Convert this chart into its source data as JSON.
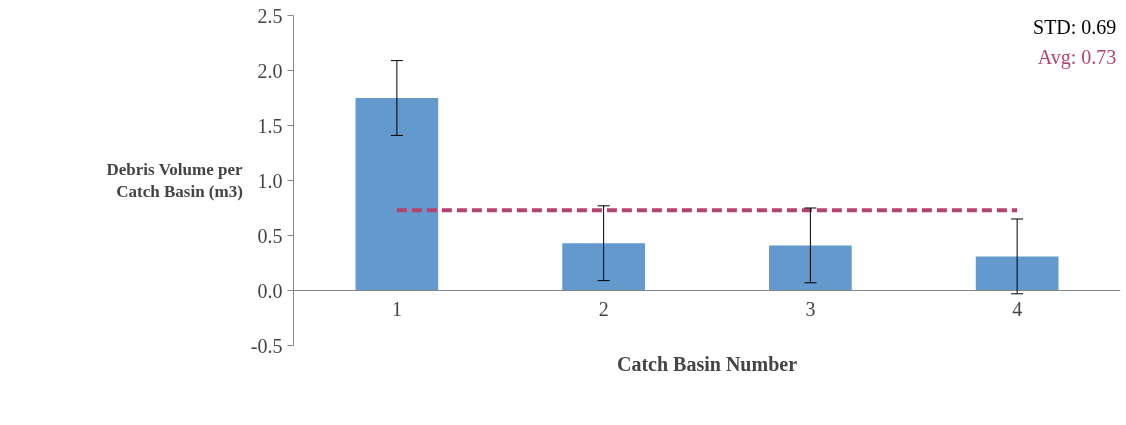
{
  "chart_data": {
    "type": "bar",
    "xlabel": "Catch Basin Number",
    "ylabel": "Debris Volume per\nCatch Basin (m3)",
    "categories": [
      "1",
      "2",
      "3",
      "4"
    ],
    "series": [
      {
        "color": "#6399cc",
        "values": [
          1.75,
          0.43,
          0.41,
          0.31
        ],
        "errors": [
          0.34,
          0.34,
          0.34,
          0.34
        ]
      }
    ],
    "ylim": [
      -0.5,
      2.5
    ],
    "yticks": [
      {
        "value": -0.5,
        "label": "-0.5"
      },
      {
        "value": 0,
        "label": "0.0"
      },
      {
        "value": 0.5,
        "label": "0.5"
      },
      {
        "value": 1,
        "label": "1.0"
      },
      {
        "value": 1.5,
        "label": "1.5"
      },
      {
        "value": 2,
        "label": "2.0"
      },
      {
        "value": 2.5,
        "label": "2.5"
      }
    ],
    "ref_lines": [
      {
        "axis": "y",
        "value": 0.73,
        "label": "Avg: 0.73",
        "color": "#b5426f",
        "line_style": "dashed"
      }
    ],
    "annotations": [
      "STD: 0.69"
    ],
    "grid": false
  }
}
